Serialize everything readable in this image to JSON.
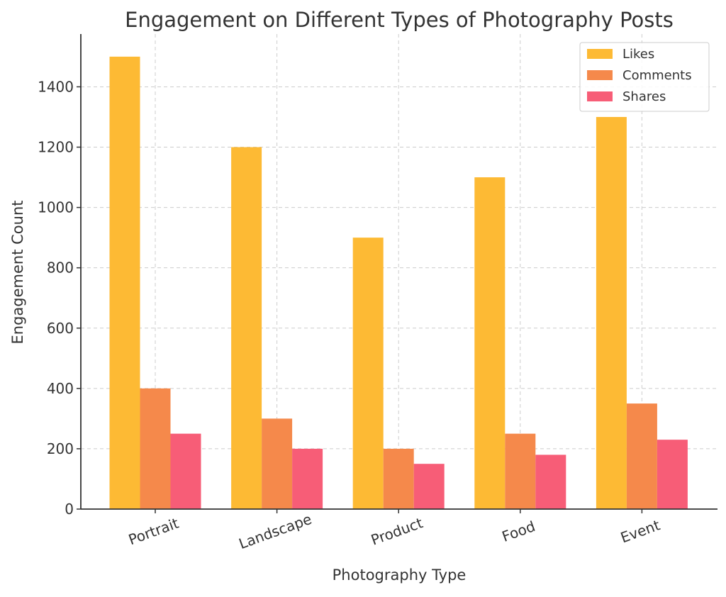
{
  "chart_data": {
    "type": "bar",
    "title": "Engagement on Different Types of Photography Posts",
    "xlabel": "Photography Type",
    "ylabel": "Engagement Count",
    "categories": [
      "Portrait",
      "Landscape",
      "Product",
      "Food",
      "Event"
    ],
    "series": [
      {
        "name": "Likes",
        "values": [
          1500,
          1200,
          900,
          1100,
          1300
        ],
        "color": "#FDBA34"
      },
      {
        "name": "Comments",
        "values": [
          400,
          300,
          200,
          250,
          350
        ],
        "color": "#F5894B"
      },
      {
        "name": "Shares",
        "values": [
          250,
          200,
          150,
          180,
          230
        ],
        "color": "#F75D77"
      }
    ],
    "ylim": [
      0,
      1575
    ],
    "yticks": [
      0,
      200,
      400,
      600,
      800,
      1000,
      1200,
      1400
    ],
    "grid": true,
    "legend_position": "top-right",
    "xtick_rotation": "-20deg"
  }
}
